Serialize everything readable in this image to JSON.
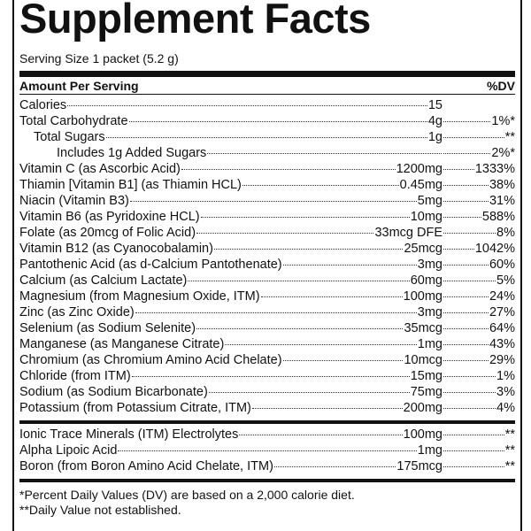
{
  "header": {
    "title": "Supplement Facts",
    "serving": "Serving Size 1 packet (5.2 g)",
    "amount_heading": "Amount Per Serving",
    "dv_heading": "%DV"
  },
  "table": {
    "rows": [
      [
        "Calories",
        "15"
      ],
      [
        "Total Carbohydrate",
        "4g",
        "1%*"
      ],
      [
        "Total Sugars",
        "1g",
        "**"
      ],
      [
        "Includes 1g Added Sugars",
        null,
        "2%*"
      ],
      [
        "Vitamin C (as Ascorbic Acid)",
        "1200mg",
        "1333%"
      ],
      [
        "Thiamin [Vitamin B1] (as Thiamin HCL)",
        "0.45mg",
        "38%"
      ],
      [
        "Niacin (Vitamin B3)",
        "5mg",
        "31%"
      ],
      [
        "Vitamin B6 (as Pyridoxine HCL)",
        "10mg",
        "588%"
      ],
      [
        "Folate (as 20mcg of Folic Acid)",
        "33mcg DFE",
        "8%"
      ],
      [
        "Vitamin B12 (as Cyanocobalamin)",
        "25mcg",
        "1042%"
      ],
      [
        "Pantothenic Acid (as d-Calcium Pantothenate)",
        "3mg",
        "60%"
      ],
      [
        "Calcium (as Calcium Lactate)",
        "60mg",
        "5%"
      ],
      [
        "Magnesium (from Magnesium Oxide, ITM)",
        "100mg",
        "24%"
      ],
      [
        "Zinc (as Zinc Oxide)",
        "3mg",
        "27%"
      ],
      [
        "Selenium (as Sodium Selenite)",
        "35mcg",
        "64%"
      ],
      [
        "Manganese (as Manganese Citrate)",
        "1mg",
        "43%"
      ],
      [
        "Chromium (as Chromium Amino Acid Chelate)",
        "10mcg",
        "29%"
      ],
      [
        "Chloride (from ITM)",
        "15mg",
        "1%"
      ],
      [
        "Sodium (as Sodium Bicarbonate)",
        "75mg",
        "3%"
      ],
      [
        "Potassium (from Potassium Citrate, ITM)",
        "200mg",
        "4%"
      ]
    ],
    "other_rows": [
      [
        "Ionic Trace Minerals (ITM) Electrolytes",
        "100mg",
        "**"
      ],
      [
        "Alpha Lipoic Acid",
        "1mg",
        "**"
      ],
      [
        "Boron (from Boron Amino Acid Chelate, ITM)",
        "175mcg",
        "**"
      ]
    ]
  },
  "footnotes": [
    "*Percent Daily Values (DV) are based on a 2,000 calorie diet.",
    "**Daily Value not established."
  ]
}
